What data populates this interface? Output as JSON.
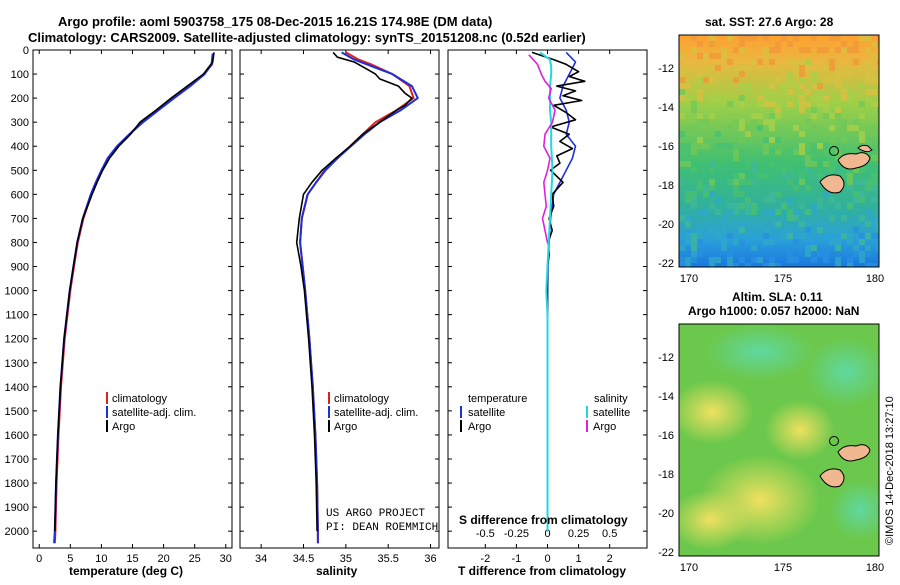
{
  "header": {
    "title_line1": "Argo profile: aoml 5903758_175 08-Dec-2015 16.21S 174.98E (DM data)",
    "title_line2": "Climatology: CARS2009. Satellite-adjusted climatology: synTS_20151208.nc (0.52d earlier)"
  },
  "colors": {
    "climatology": "#e02020",
    "satellite": "#1c2fd8",
    "argo": "#000000",
    "sal_satellite": "#22d8e0",
    "sal_argo": "#e020e0",
    "map_land": "#f0b890"
  },
  "chart_data": [
    {
      "type": "line",
      "id": "temperature",
      "xlabel": "temperature (deg C)",
      "ylabel": "",
      "xlim": [
        -1,
        31
      ],
      "ylim": [
        2070,
        0
      ],
      "xticks": [
        0,
        5,
        10,
        15,
        20,
        25,
        30
      ],
      "xtick_labels": [
        "0",
        "5",
        "10",
        "15",
        "20",
        "25",
        "30"
      ],
      "yticks": [
        0,
        100,
        200,
        300,
        400,
        500,
        600,
        700,
        800,
        900,
        1000,
        1100,
        1200,
        1300,
        1400,
        1500,
        1600,
        1700,
        1800,
        1900,
        2000
      ],
      "ytick_labels": [
        "0",
        "100",
        "200",
        "300",
        "400",
        "500",
        "600",
        "700",
        "800",
        "900",
        "1000",
        "1100",
        "1200",
        "1300",
        "1400",
        "1500",
        "1600",
        "1700",
        "1800",
        "1900",
        "2000"
      ],
      "legend": [
        "climatology",
        "satellite-adj. clim.",
        "Argo"
      ],
      "series": [
        {
          "name": "climatology",
          "pressure": [
            15,
            60,
            100,
            150,
            200,
            250,
            300,
            350,
            400,
            450,
            500,
            550,
            600,
            700,
            800,
            900,
            1000,
            1200,
            1400,
            1600,
            1800,
            2000,
            2050
          ],
          "values": [
            28,
            27.8,
            26.5,
            24.2,
            21.5,
            19,
            16.5,
            14.5,
            12.6,
            11.1,
            10.1,
            9.2,
            8.4,
            7.1,
            6.2,
            5.6,
            5.0,
            4.1,
            3.5,
            3.1,
            2.8,
            2.6,
            2.5
          ]
        },
        {
          "name": "satellite-adj. clim.",
          "pressure": [
            15,
            60,
            100,
            150,
            200,
            250,
            300,
            350,
            400,
            450,
            500,
            550,
            600,
            700,
            800,
            900,
            1000,
            1200,
            1400,
            1600,
            1800,
            2000,
            2050
          ],
          "values": [
            27.9,
            27.7,
            26.6,
            24.3,
            21.7,
            19.2,
            16.7,
            14.5,
            12.5,
            11.0,
            10.0,
            9.1,
            8.3,
            7.0,
            6.1,
            5.5,
            4.9,
            4.0,
            3.4,
            3.0,
            2.7,
            2.5,
            2.4
          ]
        },
        {
          "name": "Argo",
          "pressure": [
            10,
            50,
            100,
            150,
            200,
            250,
            300,
            350,
            400,
            450,
            500,
            550,
            600,
            700,
            800,
            900,
            1000,
            1200,
            1400,
            1600,
            1800,
            2000
          ],
          "values": [
            28.1,
            27.9,
            26.4,
            23.8,
            21.2,
            18.8,
            16.2,
            14.7,
            12.8,
            11.3,
            10.2,
            9.3,
            8.5,
            7.0,
            6.1,
            5.5,
            4.9,
            4.0,
            3.4,
            3.0,
            2.7,
            2.5
          ]
        }
      ]
    },
    {
      "type": "line",
      "id": "salinity",
      "xlabel": "salinity",
      "ylabel": "",
      "xlim": [
        33.75,
        36.1
      ],
      "ylim": [
        2070,
        0
      ],
      "xticks": [
        34,
        34.5,
        35,
        35.5,
        36
      ],
      "xtick_labels": [
        "34",
        "34.5",
        "35",
        "35.5",
        "36"
      ],
      "legend": [
        "climatology",
        "satellite-adj. clim.",
        "Argo"
      ],
      "series": [
        {
          "name": "climatology",
          "pressure": [
            10,
            40,
            60,
            100,
            150,
            200,
            250,
            300,
            350,
            400,
            450,
            500,
            550,
            600,
            700,
            800,
            900,
            1000,
            1200,
            1400,
            1600,
            1800,
            2000,
            2050
          ],
          "values": [
            35.0,
            35.15,
            35.3,
            35.55,
            35.75,
            35.8,
            35.6,
            35.35,
            35.2,
            35.05,
            34.9,
            34.75,
            34.65,
            34.55,
            34.48,
            34.46,
            34.49,
            34.52,
            34.57,
            34.61,
            34.64,
            34.66,
            34.67,
            34.67
          ]
        },
        {
          "name": "satellite-adj. clim.",
          "pressure": [
            10,
            40,
            60,
            100,
            150,
            200,
            250,
            300,
            350,
            400,
            450,
            500,
            550,
            600,
            700,
            800,
            900,
            1000,
            1200,
            1400,
            1600,
            1800,
            2000,
            2050
          ],
          "values": [
            34.95,
            35.1,
            35.25,
            35.55,
            35.78,
            35.85,
            35.65,
            35.4,
            35.22,
            35.06,
            34.9,
            34.76,
            34.65,
            34.55,
            34.48,
            34.46,
            34.49,
            34.52,
            34.57,
            34.61,
            34.64,
            34.66,
            34.67,
            34.67
          ]
        },
        {
          "name": "Argo",
          "pressure": [
            10,
            30,
            50,
            80,
            100,
            120,
            150,
            180,
            200,
            230,
            250,
            300,
            350,
            400,
            450,
            500,
            550,
            600,
            700,
            800,
            900,
            1000,
            1200,
            1400,
            1600,
            1800,
            2000
          ],
          "values": [
            34.85,
            34.9,
            35.1,
            35.25,
            35.35,
            35.4,
            35.62,
            35.7,
            35.78,
            35.7,
            35.6,
            35.4,
            35.2,
            35.05,
            34.88,
            34.72,
            34.6,
            34.5,
            34.45,
            34.42,
            34.47,
            34.51,
            34.56,
            34.6,
            34.63,
            34.65,
            34.66
          ]
        }
      ]
    },
    {
      "type": "line",
      "id": "differences",
      "xlabel": "T difference from climatology",
      "xlabel_top": "S difference from climatology",
      "xlim": [
        -3.2,
        3.2
      ],
      "ylim": [
        2070,
        0
      ],
      "xticks": [
        -2,
        -1,
        0,
        1,
        2
      ],
      "xtick_labels": [
        "-2",
        "-1",
        "0",
        "1",
        "2"
      ],
      "xticks_top_labels": [
        "-0.5",
        "-0.25",
        "0",
        "0.25",
        "0.5"
      ],
      "legend_left_title": "temperature",
      "legend_right_title": "salinity",
      "legend_left": [
        "satellite",
        "Argo"
      ],
      "legend_right": [
        "satellite",
        "Argo"
      ],
      "series": [
        {
          "name": "T satellite",
          "pressure": [
            10,
            50,
            100,
            150,
            200,
            250,
            300,
            350,
            400,
            450,
            500,
            600,
            700,
            800,
            900,
            1000,
            1100,
            1200,
            1300,
            1400,
            1600,
            1800,
            2000
          ],
          "values": [
            0.6,
            0.9,
            0.7,
            0.5,
            0.4,
            0.6,
            0.7,
            0.6,
            0.9,
            0.8,
            0.6,
            0.2,
            0.1,
            0.05,
            0.02,
            0,
            0,
            0,
            0,
            0,
            0,
            0,
            0
          ]
        },
        {
          "name": "T Argo",
          "pressure": [
            10,
            40,
            60,
            90,
            110,
            130,
            150,
            170,
            190,
            210,
            230,
            260,
            290,
            320,
            350,
            380,
            410,
            440,
            470,
            500,
            550,
            600,
            650,
            700,
            750,
            800,
            850,
            900,
            1000,
            1200,
            1400,
            1600,
            1800,
            2000
          ],
          "values": [
            -0.5,
            0.2,
            0.6,
            1.0,
            0.7,
            1.2,
            0.3,
            0.9,
            0.5,
            1.1,
            0.2,
            0.6,
            0.9,
            0.1,
            0.7,
            0.4,
            0.8,
            0.3,
            0.4,
            0.1,
            0.5,
            0.15,
            0.2,
            0.05,
            0.15,
            0.02,
            0.05,
            0,
            0,
            0,
            0,
            0,
            0,
            0
          ]
        },
        {
          "name": "S satellite",
          "pressure": [
            10,
            40,
            70,
            100,
            150,
            200,
            250,
            300,
            400,
            500,
            600,
            700,
            800,
            900,
            1000,
            1100,
            1200,
            1300,
            1400,
            1600,
            1800,
            2000
          ],
          "values": [
            -0.06,
            0.02,
            0.03,
            0.03,
            0.02,
            0.02,
            0.02,
            0.03,
            0.03,
            0.04,
            0.03,
            0.02,
            0.01,
            0.0,
            -0.01,
            0.0,
            0.0,
            0.0,
            0.0,
            0.0,
            0.0,
            0.0
          ]
        },
        {
          "name": "S Argo",
          "pressure": [
            20,
            60,
            100,
            130,
            160,
            200,
            250,
            300,
            350,
            400,
            450,
            500,
            550,
            600,
            650,
            700,
            750,
            800
          ],
          "values": [
            -0.15,
            -0.08,
            -0.05,
            -0.02,
            0.03,
            0.01,
            0.06,
            0.04,
            -0.02,
            -0.03,
            0.02,
            0.0,
            -0.03,
            -0.02,
            -0.01,
            -0.04,
            -0.02,
            0.0
          ]
        }
      ]
    }
  ],
  "credits": {
    "line1": "US ARGO PROJECT",
    "line2": "PI: DEAN ROEMMICH"
  },
  "maps": {
    "sst": {
      "title": "sat. SST: 27.6 Argo: 28",
      "xticks": [
        "170",
        "175",
        "180"
      ],
      "yticks": [
        "-12",
        "-14",
        "-16",
        "-18",
        "-20",
        "-22"
      ]
    },
    "sla": {
      "title_line1": "Altim. SLA: 0.11",
      "title_line2": "Argo h1000: 0.057 h2000: NaN",
      "xticks": [
        "170",
        "175",
        "180"
      ],
      "yticks": [
        "-12",
        "-14",
        "-16",
        "-18",
        "-20",
        "-22"
      ]
    }
  },
  "footer": {
    "stamp": "©IMOS 14-Dec-2018 13:27:10"
  }
}
